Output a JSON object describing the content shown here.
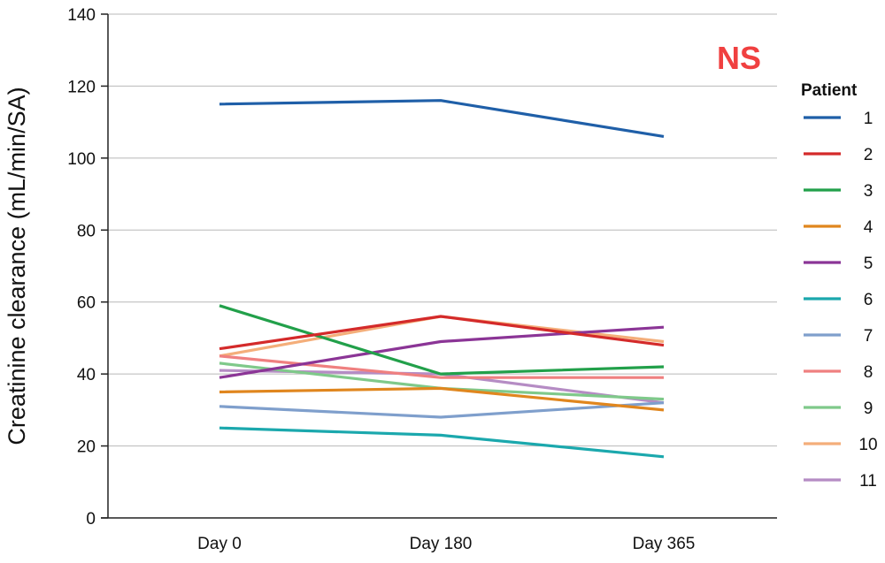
{
  "chart_data": {
    "type": "line",
    "title": "",
    "xlabel": "",
    "ylabel": "Creatinine clearance (mL/min/SA)",
    "categories": [
      "Day 0",
      "Day 180",
      "Day 365"
    ],
    "ylim": [
      0,
      140
    ],
    "yticks": [
      "0",
      "20",
      "40",
      "60",
      "80",
      "100",
      "120",
      "140"
    ],
    "grid": "horizontal",
    "legend_title": "Patient",
    "legend_position": "right",
    "annotation": {
      "text": "NS",
      "color": "#f04040"
    },
    "series": [
      {
        "name": "1",
        "color": "#1f5fa8",
        "values": [
          115,
          116,
          106
        ]
      },
      {
        "name": "2",
        "color": "#d42a2a",
        "values": [
          47,
          56,
          48
        ]
      },
      {
        "name": "3",
        "color": "#22a04a",
        "values": [
          59,
          40,
          42
        ]
      },
      {
        "name": "4",
        "color": "#e0861e",
        "values": [
          35,
          36,
          30
        ]
      },
      {
        "name": "5",
        "color": "#8b3596",
        "values": [
          39,
          49,
          53
        ]
      },
      {
        "name": "6",
        "color": "#1ba8ad",
        "values": [
          25,
          23,
          17
        ]
      },
      {
        "name": "7",
        "color": "#7f9fcc",
        "values": [
          31,
          28,
          32
        ]
      },
      {
        "name": "8",
        "color": "#ef8080",
        "values": [
          45,
          39,
          39
        ]
      },
      {
        "name": "9",
        "color": "#7fc98a",
        "values": [
          43,
          36,
          33
        ]
      },
      {
        "name": "10",
        "color": "#f4ae7a",
        "values": [
          45,
          56,
          49
        ]
      },
      {
        "name": "11",
        "color": "#b58cc4",
        "values": [
          41,
          40,
          32
        ]
      }
    ]
  }
}
